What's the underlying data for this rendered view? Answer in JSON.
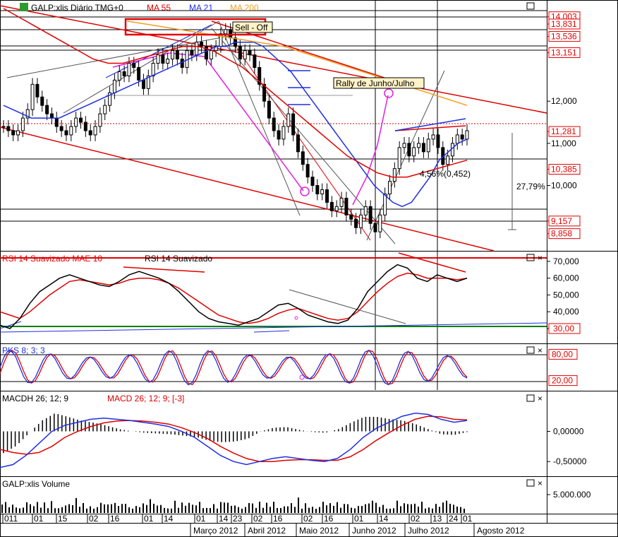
{
  "colors": {
    "bg": "#ffffff",
    "grid": "#000000",
    "red": "#e00000",
    "blue": "#1f2fe0",
    "orange": "#f0a020",
    "magenta": "#e020e0",
    "green": "#008000",
    "candle": "#000000"
  },
  "price_panel": {
    "title": "GALP:xlis Diário TMG+0",
    "ma55_label": "MA 55",
    "ma21_label": "MA 21",
    "ma200_label": "MA 200",
    "annotations": {
      "sell_off": "Sell - Off",
      "rally": "Rally de Junho/Julho",
      "move_pct": "27,79%",
      "channel_pct": "4,56%(0,452)"
    },
    "axis_labels": [
      "14,003",
      "13,831",
      "13,536",
      "13,151",
      "12,000",
      "11,281",
      "11,000",
      "10,385",
      "10,000",
      "9,157",
      "8,858"
    ],
    "boxed_labels": [
      "14,003",
      "13,831",
      "13,536",
      "13,151",
      "11,281",
      "10,385",
      "9,157",
      "8,858"
    ]
  },
  "rsi_panel": {
    "label_a": "RSI 14 Suavizado MAE 10",
    "label_b": "RSI 14 Suavizado",
    "axis_labels": [
      "70,000",
      "60,000",
      "50,000",
      "40,000",
      "30,00"
    ]
  },
  "pks_panel": {
    "label": "PKS 8; 3; 3",
    "axis_labels": [
      "80,00",
      "20,00"
    ]
  },
  "macd_panel": {
    "label_a": "MACDH 26; 12; 9",
    "label_b": "MACD 26; 12; 9; [-3]",
    "axis_labels": [
      "0,00000",
      "-0,50000"
    ]
  },
  "volume_panel": {
    "label": "GALP:xlis Volume",
    "axis_labels": [
      "5.000.000"
    ]
  },
  "x_axis": {
    "days": [
      "011",
      "01",
      "15",
      "02",
      "16",
      "01",
      "14",
      "01",
      "14",
      "23",
      "02",
      "16",
      "02",
      "16",
      "01",
      "14",
      "02",
      "13",
      "24",
      "01"
    ],
    "months": [
      "Março 2012",
      "Abril 2012",
      "Maio 2012",
      "Junho 2012",
      "Julho 2012",
      "Agosto 2012"
    ]
  },
  "chart_data": {
    "type": "line",
    "x_start": "2012-01-02",
    "y_range": [
      8.5,
      14.3
    ],
    "close": [
      11.4,
      11.3,
      11.2,
      11.3,
      11.6,
      11.8,
      12.4,
      12.1,
      11.9,
      11.7,
      11.6,
      11.4,
      11.3,
      11.2,
      11.4,
      11.6,
      11.5,
      11.3,
      11.2,
      11.4,
      11.7,
      11.9,
      12.2,
      12.5,
      12.7,
      12.6,
      12.9,
      12.8,
      12.5,
      12.3,
      12.6,
      12.9,
      13.1,
      12.9,
      13.0,
      13.2,
      13.0,
      12.8,
      13.2,
      13.1,
      13.4,
      13.3,
      13.0,
      13.2,
      13.3,
      13.6,
      13.7,
      13.5,
      13.3,
      13.0,
      13.2,
      13.1,
      12.8,
      12.4,
      12.0,
      11.6,
      11.3,
      11.1,
      11.4,
      11.7,
      11.2,
      10.8,
      10.5,
      10.2,
      10.0,
      9.8,
      9.9,
      9.6,
      9.4,
      9.5,
      9.7,
      9.3,
      9.2,
      9.0,
      9.3,
      9.5,
      9.1,
      8.9,
      9.3,
      9.8,
      10.1,
      10.4,
      10.9,
      11.0,
      10.7,
      10.9,
      11.0,
      10.8,
      11.1,
      11.2,
      10.9,
      10.5,
      10.7,
      11.0,
      11.2,
      11.1,
      11.3
    ],
    "ma21": [
      11.9,
      11.8,
      11.7,
      11.6,
      11.6,
      11.6,
      11.6,
      11.7,
      11.8,
      11.9,
      12.0,
      12.1,
      12.2,
      12.3,
      12.4,
      12.5,
      12.6,
      12.7,
      12.8,
      12.9,
      13.0,
      13.1,
      13.2,
      13.3,
      13.3,
      13.4,
      13.4,
      13.4,
      13.3,
      13.1,
      12.9,
      12.7,
      12.4,
      12.1,
      11.8,
      11.5,
      11.2,
      10.9,
      10.6,
      10.3,
      10.0,
      9.8,
      9.6,
      9.5,
      9.6,
      9.9,
      10.2,
      10.6,
      10.8,
      11.0,
      11.1
    ],
    "ma55": [
      14.2,
      14.0,
      13.8,
      13.6,
      13.4,
      13.2,
      13.0,
      12.9,
      12.9,
      13.0,
      13.1,
      13.2,
      13.3,
      13.3,
      13.2,
      13.0,
      12.8,
      12.5,
      12.2,
      11.9,
      11.6,
      11.3,
      11.0,
      10.7,
      10.5,
      10.3,
      10.2,
      10.2,
      10.3,
      10.4,
      10.5,
      10.6
    ],
    "ma200": [
      13.9,
      13.8,
      13.7,
      13.6,
      13.5,
      13.4,
      13.3,
      13.1,
      12.9,
      12.7,
      12.5,
      12.3,
      12.1,
      11.9
    ],
    "rsi": [
      32,
      30,
      36,
      45,
      52,
      56,
      60,
      62,
      60,
      58,
      56,
      55,
      58,
      62,
      64,
      62,
      60,
      57,
      52,
      46,
      40,
      36,
      34,
      33,
      32,
      34,
      36,
      40,
      44,
      45,
      42,
      38,
      36,
      34,
      33,
      35,
      42,
      52,
      58,
      64,
      68,
      66,
      60,
      58,
      62,
      60,
      58,
      60
    ],
    "rsi_ma": [
      40,
      38,
      36,
      40,
      45,
      50,
      54,
      58,
      59,
      58,
      57,
      56,
      57,
      59,
      60,
      60,
      59,
      57,
      54,
      50,
      46,
      42,
      38,
      36,
      34,
      33,
      34,
      36,
      39,
      41,
      42,
      40,
      38,
      36,
      35,
      36,
      40,
      46,
      52,
      57,
      61,
      63,
      62,
      60,
      60,
      60,
      59,
      60
    ],
    "macd": [
      -0.6,
      -0.55,
      -0.4,
      -0.2,
      0.0,
      0.1,
      0.15,
      0.2,
      0.22,
      0.2,
      0.18,
      0.15,
      0.12,
      0.08,
      0.0,
      -0.1,
      -0.25,
      -0.4,
      -0.5,
      -0.55,
      -0.5,
      -0.45,
      -0.42,
      -0.45,
      -0.48,
      -0.5,
      -0.45,
      -0.3,
      -0.1,
      0.05,
      0.15,
      0.25,
      0.3,
      0.28,
      0.2,
      0.15,
      0.18
    ],
    "macd_signal": [
      -0.3,
      -0.35,
      -0.38,
      -0.35,
      -0.25,
      -0.1,
      0.0,
      0.08,
      0.14,
      0.17,
      0.18,
      0.17,
      0.15,
      0.12,
      0.06,
      -0.02,
      -0.12,
      -0.25,
      -0.36,
      -0.45,
      -0.5,
      -0.5,
      -0.48,
      -0.47,
      -0.47,
      -0.48,
      -0.48,
      -0.42,
      -0.3,
      -0.15,
      -0.02,
      0.1,
      0.2,
      0.25,
      0.24,
      0.2,
      0.19
    ]
  }
}
